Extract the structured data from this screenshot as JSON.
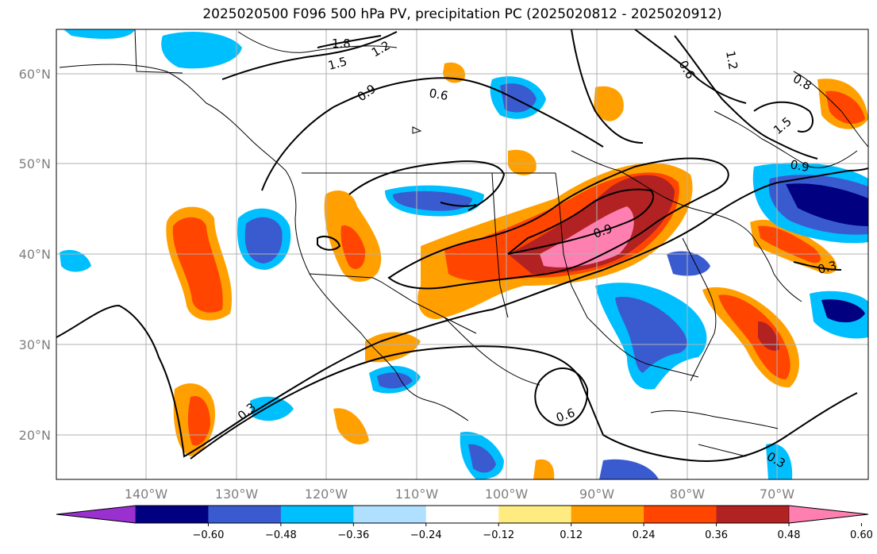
{
  "title": "2025020500 F096 500 hPa PV, precipitation PC (2025020812 - 2025020912)",
  "lat_labels": [
    "60°N",
    "50°N",
    "40°N",
    "30°N",
    "20°N"
  ],
  "lon_labels": [
    "140°W",
    "130°W",
    "120°W",
    "110°W",
    "100°W",
    "90°W",
    "80°W",
    "70°W"
  ],
  "contour_labels": [
    "1.8",
    "1.5",
    "1.2",
    "0.9",
    "0.6",
    "0.9",
    "0.6",
    "0.3",
    "0.3",
    "0.6",
    "0.9",
    "1.5",
    "1.2",
    "0.8",
    "0.3"
  ],
  "colorbar": {
    "ticks": [
      "−0.60",
      "−0.48",
      "−0.36",
      "−0.24",
      "−0.12",
      "0.12",
      "0.24",
      "0.36",
      "0.48",
      "0.60"
    ],
    "colors": [
      "#9b30d0",
      "#000080",
      "#3a5bd0",
      "#00bfff",
      "#b0e0ff",
      "#ffffff",
      "#ffec80",
      "#ffa000",
      "#ff4500",
      "#b22222",
      "#ff80b0"
    ]
  }
}
